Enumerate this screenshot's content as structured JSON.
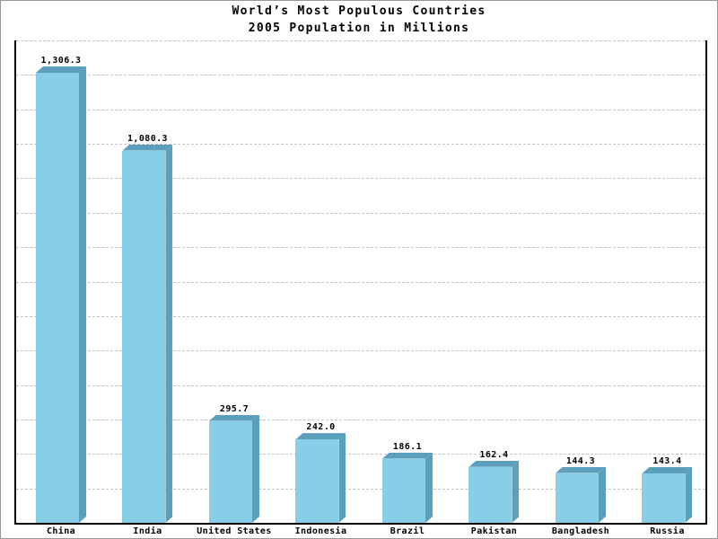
{
  "chart_data": {
    "type": "bar",
    "title": "World’s Most Populous Countries",
    "subtitle": "2005 Population in Millions",
    "categories": [
      "China",
      "India",
      "United States",
      "Indonesia",
      "Brazil",
      "Pakistan",
      "Bangladesh",
      "Russia"
    ],
    "values": [
      1306.3,
      1080.3,
      295.7,
      242.0,
      186.1,
      162.4,
      144.3,
      143.4
    ],
    "value_labels": [
      "1,306.3",
      "1,080.3",
      "295.7",
      "242.0",
      "186.1",
      "162.4",
      "144.3",
      "143.4"
    ],
    "xlabel": "",
    "ylabel": "",
    "ylim": [
      0,
      1400
    ],
    "gridline_step": 100,
    "grid": true,
    "legend_position": "none",
    "bar_front_color": "#87CEE7",
    "bar_side_color": "#5B9FBC",
    "bar_top_color": "#5B9FBC",
    "gridline_color": "#c3c3c3",
    "axis_color": "#000000",
    "frame_border_color": "#999999",
    "background_color": "#ffffff"
  }
}
